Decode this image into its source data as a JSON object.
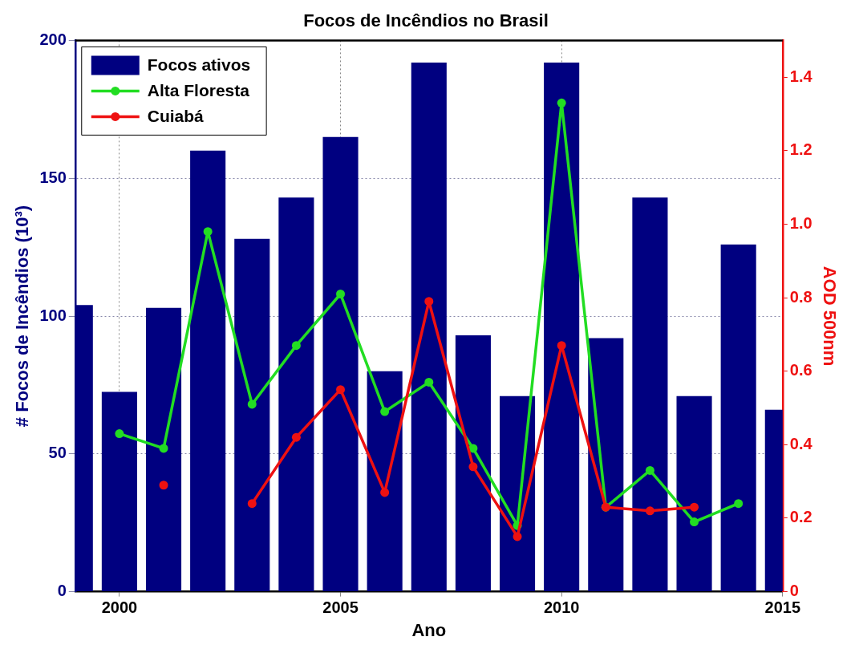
{
  "chart_data": {
    "type": "bar",
    "title": "Focos de Incêndios no Brasil",
    "xlabel": "Ano",
    "ylabel": "# Focos de Incêndios (10³)",
    "y2label": "AOD 500nm",
    "x": [
      1999,
      2000,
      2001,
      2002,
      2003,
      2004,
      2005,
      2006,
      2007,
      2008,
      2009,
      2010,
      2011,
      2012,
      2013,
      2014,
      2015
    ],
    "series": [
      {
        "name": "Focos ativos",
        "color": "#000080",
        "values": [
          104,
          72.5,
          103,
          160,
          128,
          143,
          165,
          80,
          192,
          93,
          71,
          192,
          92,
          143,
          71,
          126,
          66
        ]
      },
      {
        "name": "Alta Floresta",
        "type": "line",
        "axis": "y2",
        "color": "#22dd22",
        "values": [
          null,
          0.43,
          0.39,
          0.98,
          0.51,
          0.67,
          0.81,
          0.49,
          0.57,
          0.39,
          0.18,
          1.33,
          0.23,
          0.33,
          0.19,
          0.24,
          null
        ]
      },
      {
        "name": "Cuiabá",
        "type": "line",
        "axis": "y2",
        "color": "#ee1111",
        "values": [
          null,
          null,
          0.29,
          null,
          0.24,
          0.42,
          0.55,
          0.27,
          0.79,
          0.34,
          0.15,
          0.67,
          0.23,
          0.22,
          0.23,
          null,
          null
        ]
      }
    ],
    "xlim": [
      1999,
      2015
    ],
    "xticks": [
      2000,
      2005,
      2010,
      2015
    ],
    "ylim": [
      0,
      200
    ],
    "yticks": [
      0,
      50,
      100,
      150,
      200
    ],
    "y2lim": [
      0,
      1.5
    ],
    "y2ticks": [
      0,
      0.2,
      0.4,
      0.6,
      0.8,
      {
        "value": 1,
        "label": "1.0"
      },
      1.2,
      1.4
    ],
    "grid": true,
    "legend": "top left",
    "marker": "circle",
    "line_style": "solid"
  }
}
